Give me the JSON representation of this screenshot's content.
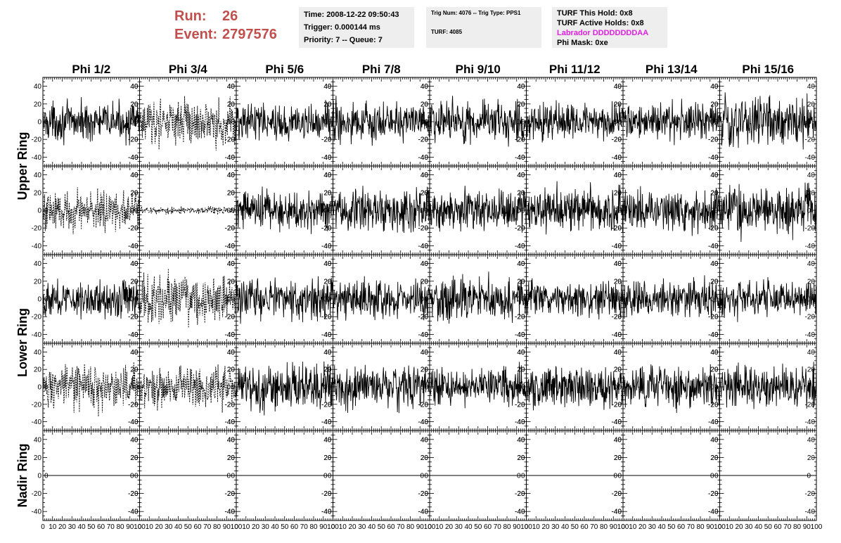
{
  "header": {
    "run_label": "Run:",
    "run_value": "26",
    "event_label": "Event:",
    "event_value": "2797576",
    "time": "Time: 2008-12-22 09:50:43",
    "trigger": "Trigger: 0.000144 ms",
    "priority": "Priority: 7 -- Queue: 7",
    "trig_num": "Trig Num: 4076 -- Trig Type: PPS1",
    "turf": "TURF: 4085",
    "turf_hold": "TURF This Hold: 0x8",
    "turf_active": "TURF Active Holds: 0x8",
    "labrador": "Labrador DDDDDDDDAA",
    "phi_mask": "Phi Mask: 0xe",
    "colors": {
      "run_text": "#c0504d",
      "labrador_text": "#e020e0",
      "box_bg": "#eeeeee"
    }
  },
  "chart_data": {
    "type": "line",
    "columns": [
      "Phi 1/2",
      "Phi 3/4",
      "Phi 5/6",
      "Phi 7/8",
      "Phi 9/10",
      "Phi 11/12",
      "Phi 13/14",
      "Phi 15/16"
    ],
    "rows": [
      "Upper Ring",
      "Lower Ring",
      "Nadir Ring"
    ],
    "subrows_per_ring": {
      "Upper Ring": 2,
      "Lower Ring": 2,
      "Nadir Ring": 1
    },
    "xlim": [
      0,
      100
    ],
    "x_ticks": [
      "0",
      "10",
      "20",
      "30",
      "40",
      "50",
      "60",
      "70",
      "80",
      "90",
      "100"
    ],
    "ylim": [
      -50,
      50
    ],
    "y_ticks": [
      "-40",
      "-20",
      "0",
      "20",
      "40"
    ],
    "samples_per_trace": 250,
    "trace_amplitude": [
      [
        10,
        12,
        10,
        11,
        12,
        10,
        10,
        14
      ],
      [
        11,
        2,
        11,
        12,
        11,
        12,
        11,
        13
      ],
      [
        10,
        13,
        11,
        10,
        12,
        10,
        10,
        10
      ],
      [
        12,
        12,
        13,
        12,
        10,
        11,
        11,
        11
      ],
      [
        0,
        0,
        0,
        0,
        0,
        0,
        0,
        0
      ]
    ],
    "trace_style": [
      [
        "solid",
        "dashed",
        "solid",
        "solid",
        "solid",
        "solid",
        "solid",
        "solid"
      ],
      [
        "dashed",
        "dashed",
        "solid",
        "solid",
        "solid",
        "solid",
        "solid",
        "solid"
      ],
      [
        "solid",
        "dashed",
        "solid",
        "solid",
        "solid",
        "solid",
        "solid",
        "solid"
      ],
      [
        "dashed",
        "dashed",
        "solid",
        "solid",
        "solid",
        "solid",
        "solid",
        "solid"
      ],
      [
        "solid",
        "solid",
        "solid",
        "solid",
        "solid",
        "solid",
        "solid",
        "solid"
      ]
    ],
    "grid": false,
    "legend": "none"
  }
}
